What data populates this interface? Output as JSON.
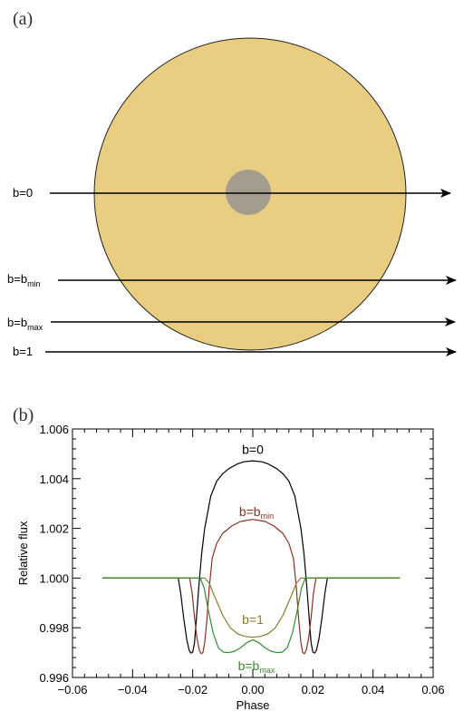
{
  "panel_a": {
    "label": "(a)",
    "star_color": "#e9cd81",
    "planet_color": "#a49d8e",
    "transit_lines": [
      {
        "base": "b=",
        "value": "0",
        "sub": ""
      },
      {
        "base": "b=b",
        "value": "",
        "sub": "min"
      },
      {
        "base": "b=b",
        "value": "",
        "sub": "max"
      },
      {
        "base": "b=",
        "value": "1",
        "sub": ""
      }
    ]
  },
  "panel_b": {
    "label": "(b)"
  },
  "chart_data": {
    "type": "line",
    "xlabel": "Phase",
    "ylabel": "Relative flux",
    "xlim": [
      -0.06,
      0.06
    ],
    "ylim": [
      0.996,
      1.006
    ],
    "x_ticks": [
      "−0.06",
      "−0.04",
      "−0.02",
      "0.00",
      "0.02",
      "0.04",
      "0.06"
    ],
    "y_ticks": [
      "0.996",
      "0.998",
      "1.000",
      "1.002",
      "1.004",
      "1.006"
    ],
    "series": [
      {
        "name": "b=0",
        "name_base": "b=0",
        "name_sub": "",
        "color": "#000000",
        "label_pos": [
          0.0,
          1.005
        ],
        "points": [
          [
            -0.05,
            1.0
          ],
          [
            -0.0248,
            1.0
          ],
          [
            -0.024,
            0.9994
          ],
          [
            -0.023,
            0.9984
          ],
          [
            -0.022,
            0.99755
          ],
          [
            -0.0212,
            0.9971
          ],
          [
            -0.0206,
            0.99698
          ],
          [
            -0.02,
            0.99702
          ],
          [
            -0.0194,
            0.9974
          ],
          [
            -0.0188,
            0.9983
          ],
          [
            -0.018,
            0.9996
          ],
          [
            -0.017,
            1.001
          ],
          [
            -0.016,
            1.002
          ],
          [
            -0.014,
            1.0033
          ],
          [
            -0.012,
            1.0039
          ],
          [
            -0.01,
            1.0042
          ],
          [
            -0.008,
            1.0044
          ],
          [
            -0.005,
            1.0046
          ],
          [
            -0.003,
            1.00468
          ],
          [
            0.0,
            1.00472
          ],
          [
            0.003,
            1.00468
          ],
          [
            0.005,
            1.0046
          ],
          [
            0.008,
            1.0044
          ],
          [
            0.01,
            1.0042
          ],
          [
            0.012,
            1.0039
          ],
          [
            0.014,
            1.0033
          ],
          [
            0.016,
            1.002
          ],
          [
            0.017,
            1.001
          ],
          [
            0.018,
            0.9996
          ],
          [
            0.0188,
            0.9983
          ],
          [
            0.0194,
            0.9974
          ],
          [
            0.02,
            0.99702
          ],
          [
            0.0206,
            0.99698
          ],
          [
            0.0212,
            0.9971
          ],
          [
            0.022,
            0.99755
          ],
          [
            0.023,
            0.9984
          ],
          [
            0.024,
            0.9994
          ],
          [
            0.0248,
            1.0
          ],
          [
            0.049,
            1.0
          ]
        ]
      },
      {
        "name": "b=bmin",
        "name_base": "b=b",
        "name_sub": "min",
        "color": "#8b2f24",
        "label_pos": [
          0.0012,
          1.0025
        ],
        "points": [
          [
            -0.05,
            1.0
          ],
          [
            -0.021,
            1.0
          ],
          [
            -0.0202,
            0.9994
          ],
          [
            -0.0194,
            0.9984
          ],
          [
            -0.0186,
            0.9976
          ],
          [
            -0.0178,
            0.9971
          ],
          [
            -0.0172,
            0.99696
          ],
          [
            -0.0166,
            0.997
          ],
          [
            -0.016,
            0.9974
          ],
          [
            -0.0153,
            0.9983
          ],
          [
            -0.0145,
            0.9996
          ],
          [
            -0.0135,
            1.0008
          ],
          [
            -0.012,
            1.0014
          ],
          [
            -0.01,
            1.0018
          ],
          [
            -0.007,
            1.0021
          ],
          [
            -0.004,
            1.00228
          ],
          [
            0.0,
            1.00236
          ],
          [
            0.004,
            1.00228
          ],
          [
            0.007,
            1.0021
          ],
          [
            0.01,
            1.0018
          ],
          [
            0.012,
            1.0014
          ],
          [
            0.0135,
            1.0008
          ],
          [
            0.0145,
            0.9996
          ],
          [
            0.0153,
            0.9983
          ],
          [
            0.016,
            0.9974
          ],
          [
            0.0166,
            0.997
          ],
          [
            0.0172,
            0.99696
          ],
          [
            0.0178,
            0.9971
          ],
          [
            0.0186,
            0.9976
          ],
          [
            0.0194,
            0.9984
          ],
          [
            0.0202,
            0.9994
          ],
          [
            0.021,
            1.0
          ],
          [
            0.049,
            1.0
          ]
        ]
      },
      {
        "name": "b=1",
        "name_base": "b=1",
        "name_sub": "",
        "color": "#8a7d2e",
        "label_pos": [
          0.0,
          0.99815
        ],
        "points": [
          [
            -0.05,
            1.0
          ],
          [
            -0.016,
            1.0
          ],
          [
            -0.0145,
            0.9998
          ],
          [
            -0.0125,
            0.9992
          ],
          [
            -0.01,
            0.9985
          ],
          [
            -0.0075,
            0.998
          ],
          [
            -0.005,
            0.99775
          ],
          [
            -0.0025,
            0.99765
          ],
          [
            0.0,
            0.99762
          ],
          [
            0.0025,
            0.99765
          ],
          [
            0.005,
            0.99775
          ],
          [
            0.0075,
            0.998
          ],
          [
            0.01,
            0.9985
          ],
          [
            0.0125,
            0.9992
          ],
          [
            0.0145,
            0.9998
          ],
          [
            0.016,
            1.0
          ],
          [
            0.049,
            1.0
          ]
        ]
      },
      {
        "name": "b=bmax",
        "name_base": "b=b",
        "name_sub": "max",
        "color": "#3b8a32",
        "label_pos": [
          0.0012,
          0.9963
        ],
        "points": [
          [
            -0.05,
            1.0
          ],
          [
            -0.0175,
            1.0
          ],
          [
            -0.0162,
            0.9996
          ],
          [
            -0.0148,
            0.9987
          ],
          [
            -0.0132,
            0.9978
          ],
          [
            -0.0115,
            0.9972
          ],
          [
            -0.0098,
            0.99702
          ],
          [
            -0.008,
            0.997
          ],
          [
            -0.006,
            0.99706
          ],
          [
            -0.004,
            0.9972
          ],
          [
            -0.002,
            0.9974
          ],
          [
            0.0,
            0.99752
          ],
          [
            0.002,
            0.9974
          ],
          [
            0.004,
            0.9972
          ],
          [
            0.006,
            0.99706
          ],
          [
            0.008,
            0.997
          ],
          [
            0.0098,
            0.99702
          ],
          [
            0.0115,
            0.9972
          ],
          [
            0.0132,
            0.9978
          ],
          [
            0.0148,
            0.9987
          ],
          [
            0.0162,
            0.9996
          ],
          [
            0.0175,
            1.0
          ],
          [
            0.049,
            1.0
          ]
        ]
      }
    ]
  }
}
